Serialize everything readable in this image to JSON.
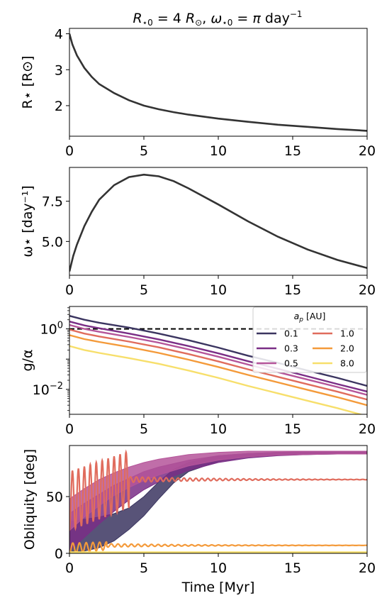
{
  "figure": {
    "title": "R⋆0 = 4 R⊙,  ω⋆0 = π day⁻¹"
  },
  "chart_data": [
    {
      "type": "line",
      "ylabel": "R⋆ [R⊙]",
      "xlim": [
        0,
        20
      ],
      "ylim": [
        1.15,
        4.15
      ],
      "xticks": [
        "0",
        "5",
        "10",
        "15",
        "20"
      ],
      "yticks": [
        {
          "v": 2,
          "label": "2"
        },
        {
          "v": 3,
          "label": "3"
        },
        {
          "v": 4,
          "label": "4"
        }
      ],
      "series": [
        {
          "color": "#333333",
          "x": [
            0,
            0.2,
            0.5,
            1,
            1.5,
            2,
            3,
            4,
            5,
            6,
            7,
            8,
            10,
            12,
            14,
            16,
            18,
            20
          ],
          "y": [
            4.0,
            3.7,
            3.4,
            3.05,
            2.8,
            2.6,
            2.35,
            2.15,
            2.0,
            1.9,
            1.82,
            1.75,
            1.64,
            1.55,
            1.47,
            1.41,
            1.35,
            1.3
          ]
        }
      ]
    },
    {
      "type": "line",
      "ylabel": "ω⋆ [day⁻¹]",
      "xlim": [
        0,
        20
      ],
      "ylim": [
        2.9,
        9.6
      ],
      "xticks": [
        "0",
        "5",
        "10",
        "15",
        "20"
      ],
      "yticks": [
        {
          "v": 5.0,
          "label": "5.0"
        },
        {
          "v": 7.5,
          "label": "7.5"
        }
      ],
      "series": [
        {
          "color": "#333333",
          "x": [
            0,
            0.25,
            0.5,
            1,
            1.5,
            2,
            3,
            4,
            5,
            6,
            7,
            8,
            10,
            12,
            14,
            16,
            18,
            20
          ],
          "y": [
            3.14,
            4.1,
            4.8,
            5.95,
            6.85,
            7.6,
            8.5,
            9.0,
            9.15,
            9.05,
            8.75,
            8.3,
            7.3,
            6.25,
            5.3,
            4.5,
            3.85,
            3.35
          ]
        }
      ]
    },
    {
      "type": "line",
      "ylabel": "g/α",
      "ylog": true,
      "xlim": [
        0,
        20
      ],
      "ylim": [
        0.0015,
        5.5
      ],
      "xticks": [
        "0",
        "5",
        "10",
        "15",
        "20"
      ],
      "yticks": [
        {
          "v": 1,
          "label": "10^0"
        },
        {
          "v": 0.01,
          "label": "10^-2"
        }
      ],
      "reference_line": {
        "y": 1,
        "style": "dashed",
        "color": "#000000"
      },
      "legend": {
        "title": "a_p [AU]",
        "placement": "upper right",
        "columns": 2
      },
      "x": [
        0,
        1,
        2,
        4,
        6,
        8,
        10,
        12,
        14,
        16,
        18,
        20
      ],
      "series": [
        {
          "name": "0.1",
          "color": "#3b3560",
          "y": [
            2.7,
            2.0,
            1.6,
            1.1,
            0.7,
            0.42,
            0.24,
            0.13,
            0.075,
            0.042,
            0.024,
            0.013
          ]
        },
        {
          "name": "0.3",
          "color": "#7a2e86",
          "y": [
            1.75,
            1.3,
            1.05,
            0.7,
            0.45,
            0.27,
            0.155,
            0.085,
            0.048,
            0.027,
            0.015,
            0.0085
          ]
        },
        {
          "name": "0.5",
          "color": "#b5559a",
          "y": [
            1.35,
            1.0,
            0.8,
            0.54,
            0.35,
            0.21,
            0.12,
            0.066,
            0.037,
            0.021,
            0.012,
            0.0066
          ]
        },
        {
          "name": "1.0",
          "color": "#e06c5d",
          "y": [
            0.95,
            0.7,
            0.56,
            0.38,
            0.245,
            0.147,
            0.084,
            0.046,
            0.026,
            0.0147,
            0.0084,
            0.0046
          ]
        },
        {
          "name": "2.0",
          "color": "#f49a3a",
          "y": [
            0.62,
            0.46,
            0.37,
            0.25,
            0.16,
            0.096,
            0.055,
            0.03,
            0.017,
            0.0096,
            0.0055,
            0.003
          ]
        },
        {
          "name": "8.0",
          "color": "#f7df6b",
          "y": [
            0.27,
            0.2,
            0.16,
            0.108,
            0.07,
            0.042,
            0.024,
            0.013,
            0.0074,
            0.0042,
            0.0024,
            0.0013
          ]
        }
      ]
    },
    {
      "type": "line",
      "ylabel": "Obliquity [deg]",
      "xlabel": "Time [Myr]",
      "xlim": [
        0,
        20
      ],
      "ylim": [
        0,
        95
      ],
      "xticks": [
        "0",
        "5",
        "10",
        "15",
        "20"
      ],
      "yticks": [
        {
          "v": 0,
          "label": "0"
        },
        {
          "v": 50,
          "label": "50"
        }
      ],
      "series": [
        {
          "name": "0.1",
          "color": "#3b3560",
          "band": {
            "x": [
              0,
              1,
              2,
              3,
              4,
              5,
              6,
              7,
              8,
              10,
              12,
              14,
              16,
              18,
              20
            ],
            "lo": [
              0,
              2,
              5,
              11,
              21,
              33,
              48,
              62,
              72,
              81,
              85,
              86.5,
              87,
              87.5,
              88
            ],
            "hi": [
              28,
              30,
              32,
              35,
              40,
              50,
              63,
              74,
              80,
              86,
              88,
              89,
              89.5,
              89.8,
              90
            ]
          }
        },
        {
          "name": "0.3",
          "color": "#7a2e86",
          "band": {
            "x": [
              0,
              1,
              2,
              3,
              4,
              5,
              6,
              8,
              10,
              12,
              14,
              16,
              18,
              20
            ],
            "lo": [
              2,
              14,
              26,
              37,
              47,
              56,
              63,
              73,
              80,
              84,
              86,
              87,
              88,
              88
            ],
            "hi": [
              35,
              44,
              52,
              60,
              66,
              72,
              76,
              82,
              86,
              88,
              89,
              89.5,
              89.8,
              90
            ]
          }
        },
        {
          "name": "0.5",
          "color": "#b5559a",
          "band": {
            "x": [
              0,
              1,
              2,
              3,
              4,
              5,
              6,
              8,
              10,
              12,
              14,
              16,
              18,
              20
            ],
            "lo": [
              20,
              32,
              42,
              51,
              58,
              64,
              69,
              77,
              82,
              85,
              86.5,
              87,
              87.5,
              87.5
            ],
            "hi": [
              48,
              57,
              65,
              71,
              76,
              80,
              83,
              87,
              89,
              90,
              90,
              90,
              90,
              90
            ]
          }
        },
        {
          "name": "1.0",
          "color": "#e06c5d",
          "osc": {
            "t_end": 4.0,
            "start_amp": [
              20,
              72
            ],
            "end_amp": [
              40,
              90
            ],
            "base": 65,
            "ring_amp": 2.5,
            "period": 0.4
          }
        },
        {
          "name": "2.0",
          "color": "#f49a3a",
          "osc": {
            "t_end": 2.5,
            "start_amp": [
              0,
              9
            ],
            "end_amp": [
              3,
              10
            ],
            "base": 7,
            "ring_amp": 1.5,
            "period": 0.45
          }
        },
        {
          "name": "8.0",
          "color": "#f7df6b",
          "osc": {
            "t_end": 0,
            "start_amp": [
              0,
              1
            ],
            "end_amp": [
              0,
              1
            ],
            "base": 1,
            "ring_amp": 0,
            "period": 1
          }
        }
      ]
    }
  ]
}
